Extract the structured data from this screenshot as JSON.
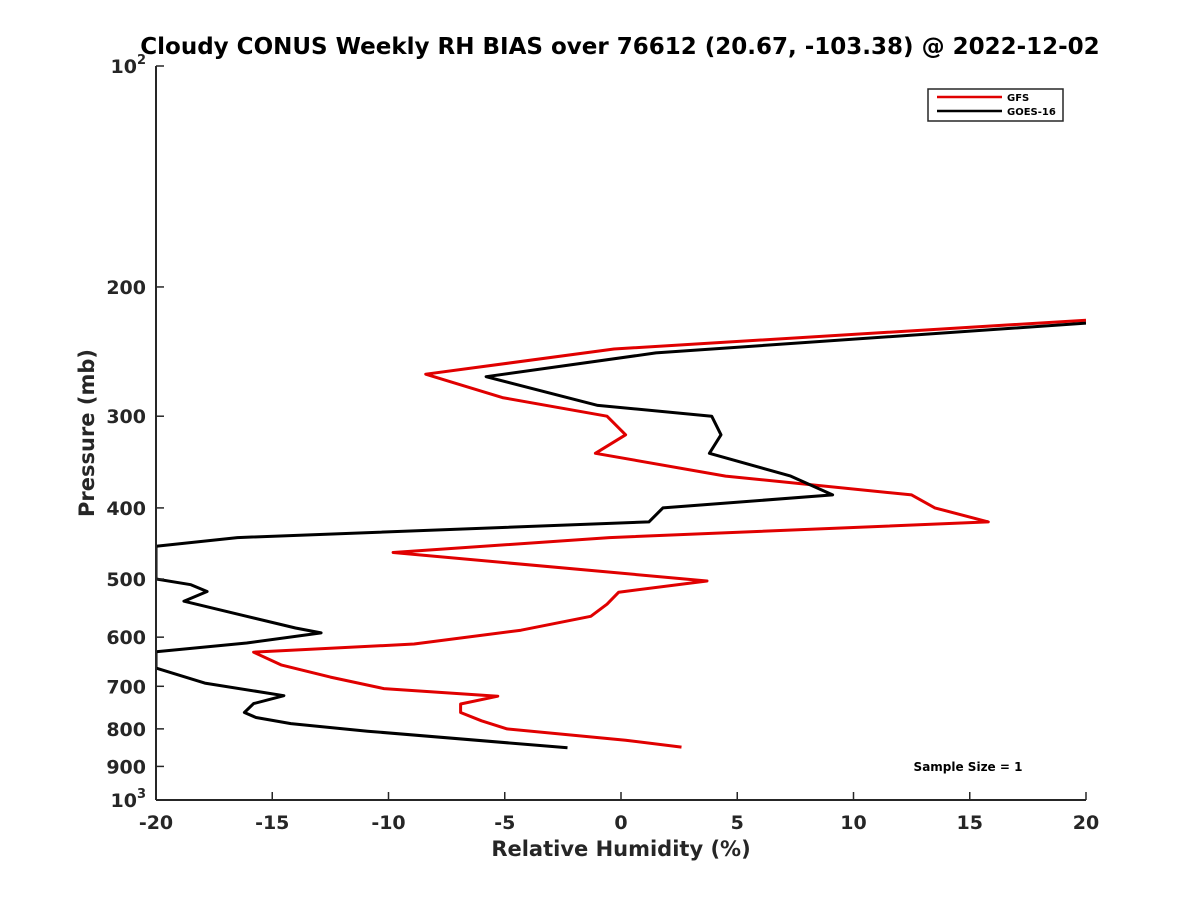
{
  "chart_data": {
    "type": "line",
    "title": "Cloudy CONUS Weekly RH BIAS over 76612 (20.67, -103.38) @ 2022-12-02",
    "xlabel": "Relative Humidity (%)",
    "ylabel": "Pressure (mb)",
    "xlim": [
      -20,
      20
    ],
    "ylim": [
      100,
      1000
    ],
    "yscale": "log",
    "y_reversed": true,
    "grid": false,
    "legend_position": "top-right",
    "x_ticks": [
      "-20",
      "-15",
      "-10",
      "-5",
      "0",
      "5",
      "10",
      "15",
      "20"
    ],
    "y_ticks": [
      {
        "value": 100,
        "label": "10",
        "sup": "2"
      },
      {
        "value": 200,
        "label": "200",
        "sup": ""
      },
      {
        "value": 300,
        "label": "300",
        "sup": ""
      },
      {
        "value": 400,
        "label": "400",
        "sup": ""
      },
      {
        "value": 500,
        "label": "500",
        "sup": ""
      },
      {
        "value": 600,
        "label": "600",
        "sup": ""
      },
      {
        "value": 700,
        "label": "700",
        "sup": ""
      },
      {
        "value": 800,
        "label": "800",
        "sup": ""
      },
      {
        "value": 900,
        "label": "900",
        "sup": ""
      },
      {
        "value": 1000,
        "label": "10",
        "sup": "3"
      }
    ],
    "series": [
      {
        "name": "GFS",
        "color": "#e00000",
        "points": [
          [
            20.0,
            222
          ],
          [
            -0.3,
            243
          ],
          [
            -8.4,
            263
          ],
          [
            -5.1,
            283
          ],
          [
            -0.6,
            300
          ],
          [
            0.2,
            318
          ],
          [
            -1.1,
            337
          ],
          [
            4.5,
            362
          ],
          [
            12.5,
            384
          ],
          [
            13.5,
            400
          ],
          [
            15.8,
            418
          ],
          [
            -0.5,
            439
          ],
          [
            -9.8,
            460
          ],
          [
            3.7,
            503
          ],
          [
            -0.1,
            521
          ],
          [
            -0.6,
            541
          ],
          [
            -1.3,
            562
          ],
          [
            -4.3,
            587
          ],
          [
            -8.9,
            613
          ],
          [
            -15.8,
            629
          ],
          [
            -14.6,
            655
          ],
          [
            -12.5,
            680
          ],
          [
            -10.2,
            705
          ],
          [
            -5.3,
            722
          ],
          [
            -6.9,
            740
          ],
          [
            -6.9,
            760
          ],
          [
            -6.0,
            780
          ],
          [
            -4.9,
            800
          ],
          [
            0.2,
            829
          ],
          [
            2.6,
            847
          ]
        ]
      },
      {
        "name": "GOES-16",
        "color": "#000000",
        "points": [
          [
            20.0,
            224
          ],
          [
            1.5,
            246
          ],
          [
            -5.8,
            265
          ],
          [
            -1.0,
            290
          ],
          [
            3.9,
            300
          ],
          [
            4.3,
            318
          ],
          [
            3.8,
            337
          ],
          [
            7.3,
            362
          ],
          [
            9.1,
            384
          ],
          [
            1.8,
            400
          ],
          [
            1.2,
            418
          ],
          [
            -16.5,
            439
          ],
          [
            -20.0,
            451
          ],
          [
            -20.0,
            500
          ],
          [
            -18.5,
            509
          ],
          [
            -17.8,
            520
          ],
          [
            -18.8,
            536
          ],
          [
            -16.3,
            560
          ],
          [
            -14.0,
            583
          ],
          [
            -12.9,
            592
          ],
          [
            -16.1,
            611
          ],
          [
            -20.0,
            628
          ],
          [
            -20.0,
            661
          ],
          [
            -17.9,
            693
          ],
          [
            -14.5,
            721
          ],
          [
            -15.8,
            739
          ],
          [
            -16.2,
            760
          ],
          [
            -15.7,
            772
          ],
          [
            -14.2,
            787
          ],
          [
            -10.9,
            806
          ],
          [
            -2.3,
            849
          ]
        ]
      }
    ],
    "legend": [
      "GFS",
      "GOES-16"
    ],
    "annotation": "Sample Size = 1"
  }
}
